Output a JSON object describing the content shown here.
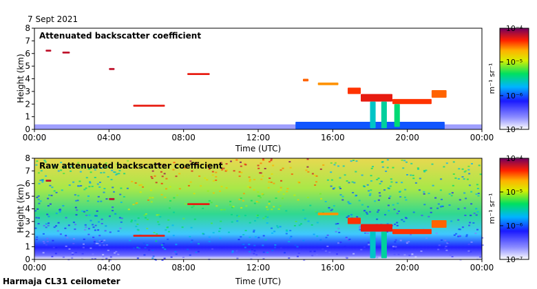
{
  "date_label": "7 Sept 2021",
  "footer_label": "Harmaja CL31 ceilometer",
  "chart_data": [
    {
      "type": "heatmap",
      "title": "Attenuated backscatter coefficient",
      "xlabel": "Time (UTC)",
      "ylabel": "Height (km)",
      "xlim": [
        0,
        24
      ],
      "ylim": [
        0,
        8
      ],
      "x_ticks": [
        "00:00",
        "04:00",
        "08:00",
        "12:00",
        "16:00",
        "20:00",
        "00:00"
      ],
      "y_ticks": [
        "0",
        "1",
        "2",
        "3",
        "4",
        "5",
        "6",
        "7",
        "8"
      ],
      "colorbar": {
        "label": "m⁻¹ sr⁻¹",
        "ticks": [
          "10⁻⁷",
          "10⁻⁶",
          "10⁻⁵",
          "10⁻⁴"
        ],
        "range_log10": [
          -7,
          -4
        ]
      },
      "layers": [
        {
          "name": "aerosol-boundary-layer",
          "start": 0,
          "end": 24,
          "bottom": 0,
          "top": 0.4,
          "level": -6.7
        },
        {
          "name": "boundary-layer-afternoon",
          "start": 14,
          "end": 22,
          "bottom": 0,
          "top": 0.6,
          "level": -6.0
        },
        {
          "name": "cloud-6.2km",
          "start": 0.6,
          "end": 0.9,
          "bottom": 6.15,
          "top": 6.3,
          "level": -4.2
        },
        {
          "name": "cloud-6.1km",
          "start": 1.5,
          "end": 1.9,
          "bottom": 6.0,
          "top": 6.15,
          "level": -4.2
        },
        {
          "name": "cloud-4.8km",
          "start": 4.0,
          "end": 4.3,
          "bottom": 4.7,
          "top": 4.85,
          "level": -4.2
        },
        {
          "name": "cloud-4.4km",
          "start": 8.2,
          "end": 9.4,
          "bottom": 4.3,
          "top": 4.45,
          "level": -4.3
        },
        {
          "name": "cloud-1.9km",
          "start": 5.3,
          "end": 7.0,
          "bottom": 1.8,
          "top": 1.95,
          "level": -4.3
        },
        {
          "name": "cloud-3.9km",
          "start": 14.4,
          "end": 14.7,
          "bottom": 3.8,
          "top": 4.0,
          "level": -4.5
        },
        {
          "name": "cloud-3.6km",
          "start": 15.2,
          "end": 16.3,
          "bottom": 3.5,
          "top": 3.7,
          "level": -4.6
        },
        {
          "name": "cloud-3.0km",
          "start": 16.8,
          "end": 17.5,
          "bottom": 2.8,
          "top": 3.3,
          "level": -4.4
        },
        {
          "name": "cloud-2.5km",
          "start": 17.5,
          "end": 19.2,
          "bottom": 2.2,
          "top": 2.8,
          "level": -4.3
        },
        {
          "name": "cloud-2.2km",
          "start": 19.2,
          "end": 21.3,
          "bottom": 2.0,
          "top": 2.4,
          "level": -4.4
        },
        {
          "name": "cloud-2.8km",
          "start": 21.3,
          "end": 22.1,
          "bottom": 2.5,
          "top": 3.1,
          "level": -4.5
        },
        {
          "name": "precip-shaft-1",
          "start": 18.0,
          "end": 18.3,
          "bottom": 0.1,
          "top": 2.2,
          "level": -5.6
        },
        {
          "name": "precip-shaft-2",
          "start": 18.6,
          "end": 18.9,
          "bottom": 0.1,
          "top": 2.2,
          "level": -5.5
        },
        {
          "name": "precip-shaft-3",
          "start": 19.3,
          "end": 19.6,
          "bottom": 0.2,
          "top": 2.0,
          "level": -5.4
        }
      ]
    },
    {
      "type": "heatmap",
      "title": "Raw attenuated backscatter coefficient",
      "xlabel": "Time (UTC)",
      "ylabel": "Height (km)",
      "xlim": [
        0,
        24
      ],
      "ylim": [
        0,
        8
      ],
      "x_ticks": [
        "00:00",
        "04:00",
        "08:00",
        "12:00",
        "16:00",
        "20:00",
        "00:00"
      ],
      "y_ticks": [
        "0",
        "1",
        "2",
        "3",
        "4",
        "5",
        "6",
        "7",
        "8"
      ],
      "colorbar": {
        "label": "m⁻¹ sr⁻¹",
        "ticks": [
          "10⁻⁷",
          "10⁻⁶",
          "10⁻⁵",
          "10⁻⁴"
        ],
        "range_log10": [
          -7,
          -4
        ]
      },
      "layers": [
        {
          "name": "cloud-6.2km",
          "start": 0.6,
          "end": 0.9,
          "bottom": 6.15,
          "top": 6.3,
          "level": -4.2
        },
        {
          "name": "cloud-4.8km",
          "start": 4.0,
          "end": 4.3,
          "bottom": 4.7,
          "top": 4.85,
          "level": -4.2
        },
        {
          "name": "cloud-4.4km",
          "start": 8.2,
          "end": 9.4,
          "bottom": 4.3,
          "top": 4.45,
          "level": -4.3
        },
        {
          "name": "cloud-1.9km",
          "start": 5.3,
          "end": 7.0,
          "bottom": 1.8,
          "top": 1.95,
          "level": -4.3
        },
        {
          "name": "cloud-3.6km",
          "start": 15.2,
          "end": 16.3,
          "bottom": 3.5,
          "top": 3.7,
          "level": -4.6
        },
        {
          "name": "cloud-3.0km",
          "start": 16.8,
          "end": 17.5,
          "bottom": 2.8,
          "top": 3.3,
          "level": -4.4
        },
        {
          "name": "cloud-2.5km",
          "start": 17.5,
          "end": 19.2,
          "bottom": 2.2,
          "top": 2.8,
          "level": -4.3
        },
        {
          "name": "cloud-2.2km",
          "start": 19.2,
          "end": 21.3,
          "bottom": 2.0,
          "top": 2.4,
          "level": -4.4
        },
        {
          "name": "cloud-2.8km",
          "start": 21.3,
          "end": 22.1,
          "bottom": 2.5,
          "top": 3.1,
          "level": -4.5
        },
        {
          "name": "precip-shaft-1",
          "start": 18.0,
          "end": 18.3,
          "bottom": 0.1,
          "top": 2.2,
          "level": -5.6
        },
        {
          "name": "precip-shaft-2",
          "start": 18.6,
          "end": 18.9,
          "bottom": 0.1,
          "top": 2.2,
          "level": -5.5
        }
      ]
    }
  ]
}
